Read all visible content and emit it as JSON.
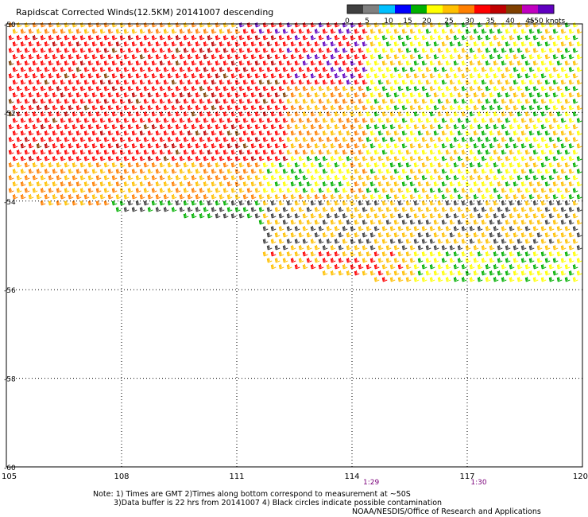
{
  "title": "Rapidscat Corrected Winds(12.5KM) 20141007 descending",
  "legend": {
    "tick_labels": [
      "0",
      "5",
      "10",
      "15",
      "20",
      "25",
      "30",
      "35",
      "40",
      "45",
      ">50 knots"
    ],
    "colors": [
      "#404040",
      "#808080",
      "#00c0ff",
      "#0000ff",
      "#00b000",
      "#ffff00",
      "#ffc000",
      "#ff7f00",
      "#ff0000",
      "#c00000",
      "#804000",
      "#c000c0",
      "#6000c0"
    ]
  },
  "map": {
    "lat_labels": [
      "-50",
      "-52",
      "-54",
      "-56",
      "-58",
      "-60"
    ],
    "lon_labels": [
      "105",
      "108",
      "111",
      "114",
      "117",
      "120"
    ],
    "time_labels": [
      {
        "text": "1:29",
        "lon": 114.5
      },
      {
        "text": "1:30",
        "lon": 117.3
      }
    ],
    "time_color": "#7a007a",
    "extent": {
      "lon_min": 105,
      "lon_max": 120,
      "lat_min": -60,
      "lat_max": -50
    }
  },
  "footer": {
    "note_line1": "Note: 1) Times are GMT 2)Times along bottom correspond to measurement at ~50S",
    "note_line2": "3)Data buffer is 22 hrs from 20141007 4) Black circles indicate possible contamination",
    "credit": "NOAA/NESDIS/Office of Research and Applications"
  }
}
